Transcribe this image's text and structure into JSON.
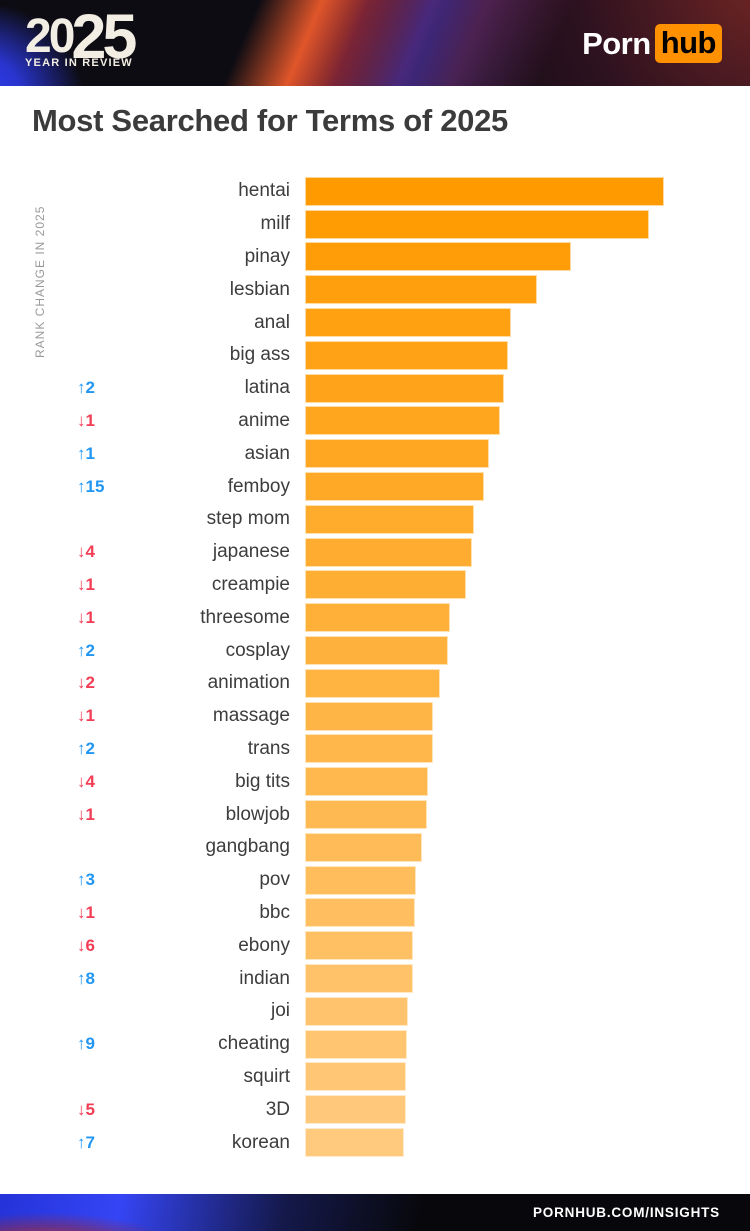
{
  "header": {
    "logo_year_first": "20",
    "logo_year_second": "25",
    "logo_subtitle": "YEAR IN REVIEW",
    "brand_porn": "Porn",
    "brand_hub": "hub"
  },
  "title": "Most Searched for Terms of 2025",
  "axis": {
    "rank_change_label": "RANK CHANGE IN 2025"
  },
  "footer": {
    "url": "PORNHUB.COM/INSIGHTS"
  },
  "colors": {
    "bar_start": "#FF9A00",
    "bar_end": "#FFCA7E",
    "rank_up": "#2196F3",
    "rank_down": "#F23D55",
    "brand_orange": "#FF9000"
  },
  "chart_data": {
    "type": "bar",
    "orientation": "horizontal",
    "title": "Most Searched for Terms of 2025",
    "ylabel": "RANK CHANGE IN 2025",
    "value_unit": "relative search volume (max = 100)",
    "xlim": [
      0,
      100
    ],
    "grid": false,
    "legend": false,
    "categories": [
      "hentai",
      "milf",
      "pinay",
      "lesbian",
      "anal",
      "big ass",
      "latina",
      "anime",
      "asian",
      "femboy",
      "step mom",
      "japanese",
      "creampie",
      "threesome",
      "cosplay",
      "animation",
      "massage",
      "trans",
      "big tits",
      "blowjob",
      "gangbang",
      "pov",
      "bbc",
      "ebony",
      "indian",
      "joi",
      "cheating",
      "squirt",
      "3D",
      "korean"
    ],
    "values": [
      100,
      95.8,
      74.1,
      64.6,
      57.4,
      56.5,
      55.4,
      54.3,
      51.3,
      49.9,
      47.1,
      46.5,
      44.8,
      40.4,
      39.8,
      37.6,
      35.7,
      35.7,
      34.3,
      34.0,
      32.6,
      30.9,
      30.6,
      30.1,
      30.1,
      28.7,
      28.4,
      28.1,
      28.1,
      27.6
    ],
    "rank_changes": [
      "",
      "",
      "",
      "",
      "",
      "",
      "+2",
      "-1",
      "+1",
      "+15",
      "",
      "-4",
      "-1",
      "-1",
      "+2",
      "-2",
      "-1",
      "+2",
      "-4",
      "-1",
      "",
      "+3",
      "-1",
      "-6",
      "+8",
      "",
      "+9",
      "",
      "-5",
      "+7"
    ]
  }
}
